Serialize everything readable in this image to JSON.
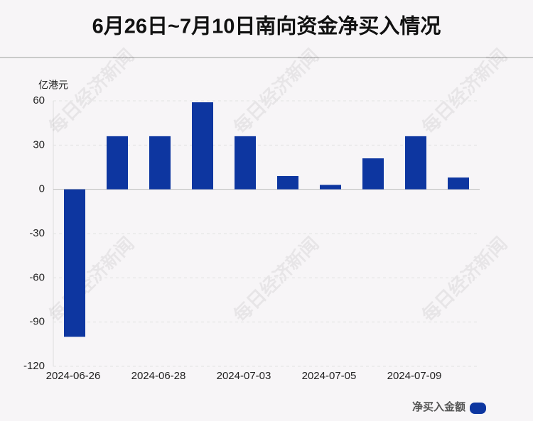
{
  "chart_data": {
    "type": "bar",
    "title": "6月26日~7月10日南向资金净买入情况",
    "y_label": "亿港元",
    "categories": [
      "2024-06-26",
      null,
      "2024-06-28",
      null,
      "2024-07-03",
      null,
      "2024-07-05",
      null,
      "2024-07-09",
      null
    ],
    "series": [
      {
        "name": "净买入金额",
        "color": "#0d36a0",
        "values": [
          -100,
          36,
          36,
          59,
          36,
          9,
          3,
          21,
          36,
          8
        ]
      }
    ],
    "ylim": [
      -120,
      60
    ],
    "yticks": [
      -120,
      -90,
      -60,
      -30,
      0,
      30,
      60
    ],
    "grid": true,
    "legend": "bottom-right",
    "watermark": "每日经济新闻"
  }
}
